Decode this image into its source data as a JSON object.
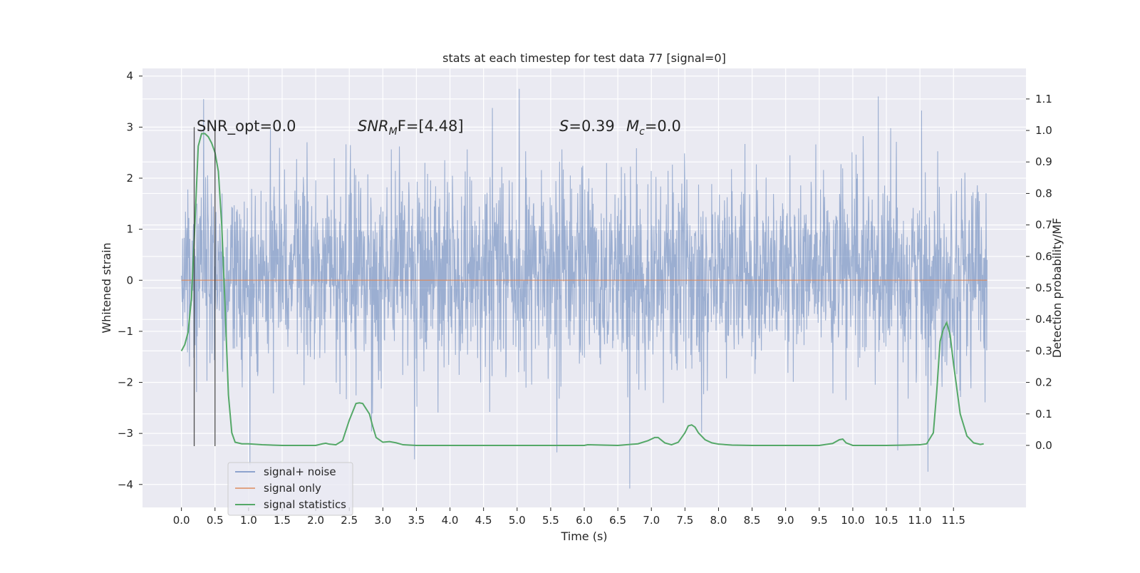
{
  "chart_data": {
    "type": "line",
    "title": "stats at each timestep for test data 77 [signal=0]",
    "xlabel": "Time (s)",
    "ylabel_left": "Whitened strain",
    "ylabel_right": "Detection probability/MF",
    "xlim": [
      -0.58,
      12.58
    ],
    "ylim_left": [
      -4.45,
      4.15
    ],
    "ylim_right": [
      -0.197,
      1.197
    ],
    "xticks": [
      "0.0",
      "0.5",
      "1.0",
      "1.5",
      "2.0",
      "2.5",
      "3.0",
      "3.5",
      "4.0",
      "4.5",
      "5.0",
      "5.5",
      "6.0",
      "6.5",
      "7.0",
      "7.5",
      "8.0",
      "8.5",
      "9.0",
      "9.5",
      "10.0",
      "10.5",
      "11.0",
      "11.5"
    ],
    "yticks_left": [
      "4",
      "3",
      "2",
      "1",
      "0",
      "−1",
      "−2",
      "−3",
      "−4"
    ],
    "yticks_right": [
      "1.1",
      "1.0",
      "0.9",
      "0.8",
      "0.7",
      "0.6",
      "0.5",
      "0.4",
      "0.3",
      "0.2",
      "0.1",
      "0.0"
    ],
    "grid": true,
    "legend_position": "lower-left",
    "annotations": {
      "snr_opt": "SNR_opt=0.0",
      "snr_mf_main": "SNR",
      "snr_mf_sub": "M",
      "snr_mf_rest": "F=[4.48]",
      "s_main": "S",
      "s_rest": "=0.39",
      "mc_main": "M",
      "mc_sub": "c",
      "mc_rest": "=0.0"
    },
    "series": [
      {
        "name": "signal+ noise",
        "color": "#4c72b0",
        "style": "noise band",
        "t_range": [
          0.0,
          12.0
        ],
        "envelope_typical": [
          -1.4,
          1.7
        ],
        "min": -4.1,
        "max": 3.75,
        "peaks": [
          [
            0.33,
            3.55
          ],
          [
            5.03,
            3.75
          ],
          [
            10.38,
            3.6
          ],
          [
            6.68,
            -4.08
          ],
          [
            11.12,
            -3.75
          ],
          [
            1.02,
            -3.62
          ]
        ]
      },
      {
        "name": "signal only",
        "color": "#dd8452",
        "x": [
          0.0,
          12.0
        ],
        "y": [
          0.0,
          0.0
        ]
      },
      {
        "name": "signal statistics",
        "color": "#55a868",
        "x": [
          0.0,
          0.05,
          0.1,
          0.15,
          0.2,
          0.25,
          0.3,
          0.35,
          0.4,
          0.45,
          0.5,
          0.55,
          0.6,
          0.65,
          0.7,
          0.75,
          0.8,
          0.9,
          1.0,
          1.2,
          1.5,
          2.0,
          2.1,
          2.15,
          2.2,
          2.3,
          2.4,
          2.5,
          2.6,
          2.65,
          2.7,
          2.8,
          2.85,
          2.9,
          3.0,
          3.1,
          3.2,
          3.3,
          3.5,
          4.0,
          5.0,
          6.0,
          6.05,
          6.5,
          6.8,
          6.95,
          7.05,
          7.1,
          7.2,
          7.3,
          7.4,
          7.5,
          7.55,
          7.6,
          7.65,
          7.7,
          7.8,
          7.9,
          8.0,
          8.2,
          8.5,
          9.0,
          9.5,
          9.7,
          9.8,
          9.85,
          9.9,
          10.0,
          10.5,
          11.0,
          11.1,
          11.2,
          11.25,
          11.3,
          11.35,
          11.4,
          11.45,
          11.5,
          11.6,
          11.7,
          11.8,
          11.9,
          11.95
        ],
        "y": [
          0.3,
          0.32,
          0.36,
          0.47,
          0.7,
          0.95,
          0.99,
          0.99,
          0.98,
          0.96,
          0.93,
          0.87,
          0.7,
          0.44,
          0.16,
          0.04,
          0.01,
          0.005,
          0.005,
          0.002,
          0.0,
          0.0,
          0.005,
          0.007,
          0.004,
          0.002,
          0.015,
          0.08,
          0.133,
          0.135,
          0.133,
          0.1,
          0.06,
          0.025,
          0.01,
          0.012,
          0.008,
          0.002,
          0.0,
          0.0,
          0.0,
          0.0,
          0.002,
          0.0,
          0.005,
          0.015,
          0.025,
          0.025,
          0.008,
          0.002,
          0.01,
          0.04,
          0.062,
          0.065,
          0.058,
          0.04,
          0.018,
          0.008,
          0.004,
          0.001,
          0.0,
          0.0,
          0.0,
          0.006,
          0.018,
          0.02,
          0.008,
          0.0,
          0.0,
          0.002,
          0.005,
          0.04,
          0.17,
          0.33,
          0.37,
          0.39,
          0.35,
          0.26,
          0.1,
          0.03,
          0.008,
          0.003,
          0.005
        ]
      }
    ],
    "vlines": [
      {
        "x": 0.19,
        "y_bottom": -3.25,
        "y_top": 3.0
      },
      {
        "x": 0.5,
        "y_bottom": -3.25,
        "y_top": 3.0
      }
    ]
  }
}
